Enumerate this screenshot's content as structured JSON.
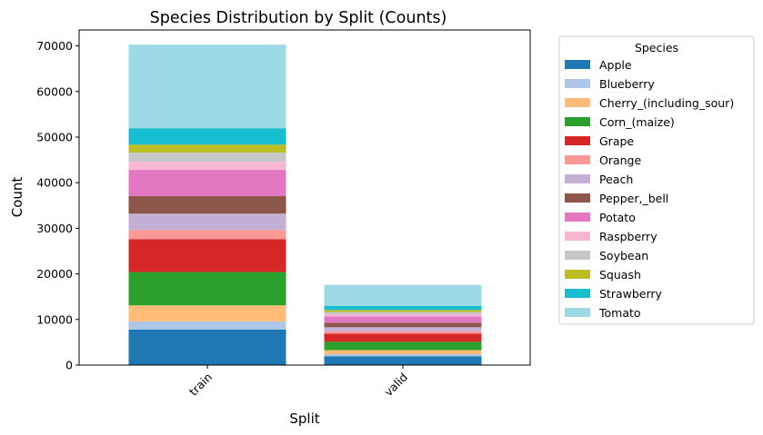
{
  "chart_data": {
    "type": "bar",
    "stacked": true,
    "title": "Species Distribution by Split (Counts)",
    "xlabel": "Split",
    "ylabel": "Count",
    "categories": [
      "train",
      "valid"
    ],
    "ylim": [
      0,
      73500
    ],
    "yticks": [
      0,
      10000,
      20000,
      30000,
      40000,
      50000,
      60000,
      70000
    ],
    "grid": false,
    "legend": {
      "title": "Species",
      "placement": "outside-right"
    },
    "series": [
      {
        "name": "Apple",
        "color": "#1f77b4",
        "values": [
          7771,
          1943
        ]
      },
      {
        "name": "Blueberry",
        "color": "#aec7e8",
        "values": [
          1816,
          454
        ]
      },
      {
        "name": "Cherry_(including_sour)",
        "color": "#ffbb78",
        "values": [
          3509,
          877
        ]
      },
      {
        "name": "Corn_(maize)",
        "color": "#2ca02c",
        "values": [
          7316,
          1829
        ]
      },
      {
        "name": "Grape",
        "color": "#d62728",
        "values": [
          7222,
          1805
        ]
      },
      {
        "name": "Orange",
        "color": "#ff9896",
        "values": [
          2010,
          503
        ]
      },
      {
        "name": "Peach",
        "color": "#c5b0d5",
        "values": [
          3566,
          892
        ]
      },
      {
        "name": "Pepper,_bell",
        "color": "#8c564b",
        "values": [
          3901,
          975
        ]
      },
      {
        "name": "Potato",
        "color": "#e377c2",
        "values": [
          5702,
          1426
        ]
      },
      {
        "name": "Raspberry",
        "color": "#f7b6d2",
        "values": [
          1781,
          445
        ]
      },
      {
        "name": "Soybean",
        "color": "#c7c7c7",
        "values": [
          2022,
          505
        ]
      },
      {
        "name": "Squash",
        "color": "#bcbd22",
        "values": [
          1736,
          434
        ]
      },
      {
        "name": "Strawberry",
        "color": "#17becf",
        "values": [
          3598,
          912
        ]
      },
      {
        "name": "Tomato",
        "color": "#9edae5",
        "values": [
          18345,
          4585
        ]
      }
    ]
  }
}
